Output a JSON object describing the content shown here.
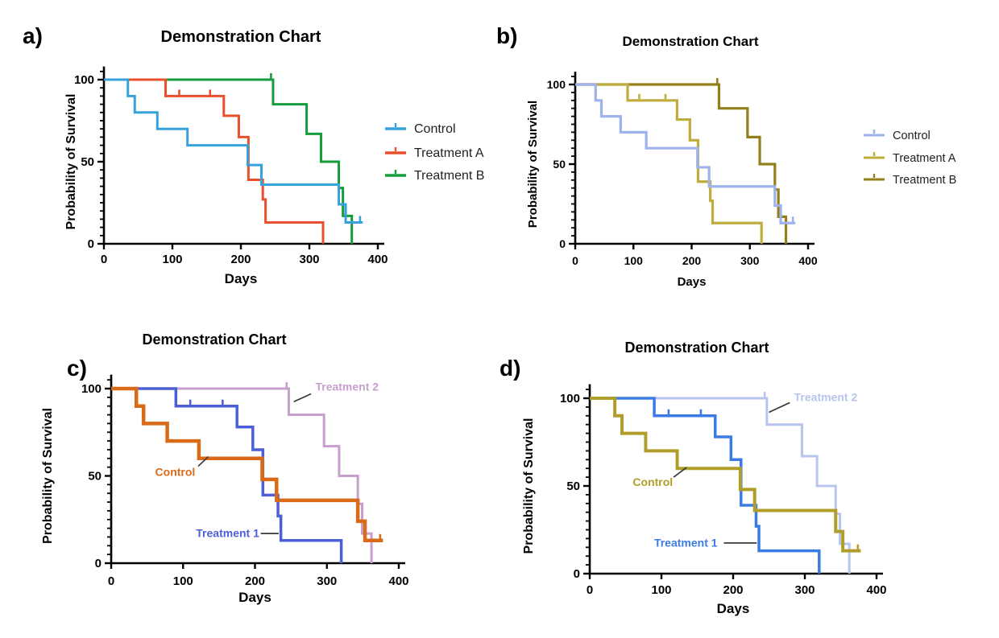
{
  "figure": {
    "background": "#ffffff",
    "common_title": "Demonstration Chart",
    "x_axis_label": "Days",
    "y_axis_label": "Probability of Survival"
  },
  "chart_data": {
    "type": "line",
    "subtype": "kaplan-meier-survival-step",
    "shared_series": {
      "control": {
        "steps": [
          [
            0,
            100
          ],
          [
            35,
            90
          ],
          [
            45,
            80
          ],
          [
            78,
            70
          ],
          [
            122,
            60
          ],
          [
            210,
            48
          ],
          [
            230,
            36
          ],
          [
            343,
            24
          ],
          [
            353,
            13
          ]
        ],
        "end_x": 378,
        "censors": [
          [
            374,
            13
          ]
        ]
      },
      "treatment_a": {
        "steps": [
          [
            0,
            100
          ],
          [
            90,
            90
          ],
          [
            175,
            78
          ],
          [
            197,
            65
          ],
          [
            211,
            39
          ],
          [
            232,
            27
          ],
          [
            236,
            13
          ],
          [
            320,
            0
          ]
        ],
        "end_x": null,
        "censors": [
          [
            110,
            90
          ],
          [
            155,
            90
          ]
        ]
      },
      "treatment_b": {
        "steps": [
          [
            0,
            100
          ],
          [
            247,
            85
          ],
          [
            296,
            67
          ],
          [
            317,
            50
          ],
          [
            343,
            34
          ],
          [
            349,
            17
          ],
          [
            362,
            0
          ]
        ],
        "end_x": null,
        "censors": [
          [
            244,
            100
          ]
        ]
      }
    },
    "panels": [
      {
        "id": "a",
        "letter": "a)",
        "title": "Demonstration Chart",
        "xlabel": "Days",
        "ylabel": "Probability of Survival",
        "xlim": [
          0,
          400
        ],
        "ylim": [
          0,
          100
        ],
        "xticks": [
          0,
          100,
          200,
          300,
          400
        ],
        "yticks": [
          0,
          50,
          100
        ],
        "legend": true,
        "legend_position": "right",
        "series": [
          {
            "label": "Control",
            "color": "#36A2DC",
            "curve": "control",
            "width": 3
          },
          {
            "label": "Treatment A",
            "color": "#E8502D",
            "curve": "treatment_a",
            "width": 3
          },
          {
            "label": "Treatment B",
            "color": "#169D3B",
            "curve": "treatment_b",
            "width": 3
          }
        ],
        "annotations": []
      },
      {
        "id": "b",
        "letter": "b)",
        "title": "Demonstration Chart",
        "xlabel": "Days",
        "ylabel": "Probability of Survival",
        "xlim": [
          0,
          400
        ],
        "ylim": [
          0,
          100
        ],
        "xticks": [
          0,
          100,
          200,
          300,
          400
        ],
        "yticks": [
          0,
          50,
          100
        ],
        "legend": true,
        "legend_position": "right",
        "series": [
          {
            "label": "Control",
            "color": "#9FB2EB",
            "curve": "control",
            "width": 3.2
          },
          {
            "label": "Treatment A",
            "color": "#BFAE3F",
            "curve": "treatment_a",
            "width": 3.2
          },
          {
            "label": "Treatment B",
            "color": "#93801A",
            "curve": "treatment_b",
            "width": 3.2
          }
        ],
        "annotations": []
      },
      {
        "id": "c",
        "letter": "c)",
        "title": "Demonstration Chart",
        "xlabel": "Days",
        "ylabel": "Probability of Survival",
        "xlim": [
          0,
          400
        ],
        "ylim": [
          0,
          100
        ],
        "xticks": [
          0,
          100,
          200,
          300,
          400
        ],
        "yticks": [
          0,
          50,
          100
        ],
        "legend": false,
        "series": [
          {
            "label": "Control",
            "color": "#D96A17",
            "curve": "control",
            "width": 4.5
          },
          {
            "label": "Treatment 1",
            "color": "#4D5FD6",
            "curve": "treatment_a",
            "width": 3.5
          },
          {
            "label": "Treatment 2",
            "color": "#C79FCD",
            "curve": "treatment_b",
            "width": 3
          }
        ],
        "annotations": [
          {
            "text": "Treatment 2",
            "color": "#C79FCD",
            "x": 284,
            "y": 101,
            "anchor": "start",
            "line": [
              278,
              97,
              254,
              92.5
            ]
          },
          {
            "text": "Control",
            "color": "#D96A17",
            "x": 89,
            "y": 52,
            "anchor": "middle",
            "line": [
              121,
              55.5,
              135,
              61
            ]
          },
          {
            "text": "Treatment 1",
            "color": "#4D5FD6",
            "x": 162,
            "y": 17,
            "anchor": "middle",
            "line": [
              208,
              17,
              233,
              17
            ]
          }
        ]
      },
      {
        "id": "d",
        "letter": "d)",
        "title": "Demonstration Chart",
        "xlabel": "Days",
        "ylabel": "Probability of Survival",
        "xlim": [
          0,
          400
        ],
        "ylim": [
          0,
          100
        ],
        "xticks": [
          0,
          100,
          200,
          300,
          400
        ],
        "yticks": [
          0,
          50,
          100
        ],
        "legend": false,
        "series": [
          {
            "label": "Control",
            "color": "#B19E28",
            "curve": "control",
            "width": 4
          },
          {
            "label": "Treatment 1",
            "color": "#3B7BE4",
            "curve": "treatment_a",
            "width": 3.5
          },
          {
            "label": "Treatment 2",
            "color": "#B7C4ED",
            "curve": "treatment_b",
            "width": 3
          }
        ],
        "annotations": [
          {
            "text": "Treatment 2",
            "color": "#B7C4ED",
            "x": 285,
            "y": 100.5,
            "anchor": "start",
            "line": [
              279,
              97.5,
              250,
              92
            ]
          },
          {
            "text": "Control",
            "color": "#B19E28",
            "x": 88,
            "y": 52,
            "anchor": "middle",
            "line": [
              117,
              55,
              135,
              60.5
            ]
          },
          {
            "text": "Treatment 1",
            "color": "#3B7BE4",
            "x": 134,
            "y": 17.5,
            "anchor": "middle",
            "line": [
              187,
              17.5,
              233,
              17.5
            ]
          }
        ]
      }
    ],
    "style": {
      "axis_color": "#000000",
      "text_color": "#000000",
      "legend_text_color": "#212121",
      "callout_color": "#3a3a3a"
    }
  }
}
